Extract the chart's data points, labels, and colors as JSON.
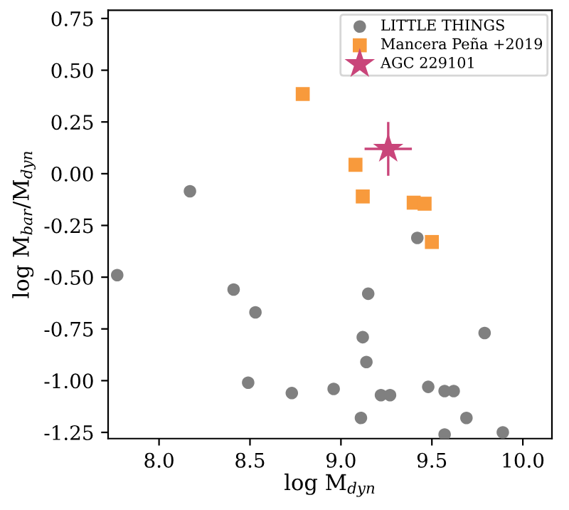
{
  "chart_data": {
    "type": "scatter",
    "xlabel": "log M$_{dyn}$",
    "ylabel": "log M$_{bar}$/M$_{dyn}$",
    "xlim": [
      7.72,
      10.16
    ],
    "ylim": [
      -1.28,
      0.79
    ],
    "xticks": [
      {
        "value": 8,
        "label": "8.0"
      },
      8.5,
      {
        "value": 9,
        "label": "9.0"
      },
      9.5,
      {
        "value": 10,
        "label": "10.0"
      }
    ],
    "yticks": [
      -1.25,
      {
        "value": -1,
        "label": "-1.00"
      },
      -0.75,
      {
        "value": -0.5,
        "label": "-0.50"
      },
      -0.25,
      {
        "value": 0,
        "label": "0.00"
      },
      0.25,
      {
        "value": 0.5,
        "label": "0.50"
      },
      0.75
    ],
    "legend": "top right",
    "grid": false,
    "series": [
      {
        "name": "LITTLE THINGS",
        "color": "#808080",
        "marker": "circle",
        "x": [
          8.17,
          9.42,
          7.77,
          8.41,
          8.53,
          9.15,
          9.12,
          9.79,
          9.14,
          8.49,
          8.73,
          8.96,
          9.22,
          9.27,
          9.48,
          9.57,
          9.62,
          9.11,
          9.69,
          9.57,
          9.89
        ],
        "values": [
          -0.085,
          -0.31,
          -0.49,
          -0.56,
          -0.67,
          -0.58,
          -0.79,
          -0.77,
          -0.91,
          -1.01,
          -1.06,
          -1.04,
          -1.07,
          -1.07,
          -1.03,
          -1.05,
          -1.05,
          -1.18,
          -1.18,
          -1.26,
          -1.25
        ]
      },
      {
        "name": "Mancera Peña +2019",
        "color": "#f89a3c",
        "marker": "square",
        "x": [
          8.79,
          9.08,
          9.12,
          9.4,
          9.46,
          9.5
        ],
        "values": [
          0.385,
          0.043,
          -0.11,
          -0.14,
          -0.145,
          -0.33
        ]
      },
      {
        "name": "AGC 229101",
        "color": "#c9457a",
        "marker": "star",
        "x": [
          9.26
        ],
        "values": [
          0.12
        ],
        "errors": [
          0.13
        ],
        "xerrors": [
          0.13
        ]
      }
    ]
  }
}
